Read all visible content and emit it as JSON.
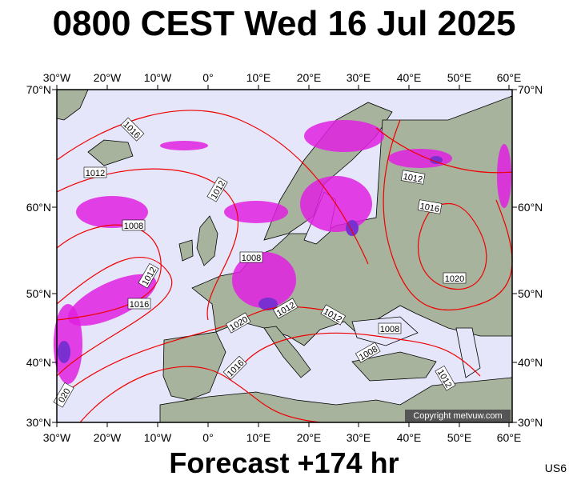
{
  "title": "0800 CEST Wed 16 Jul 2025",
  "map": {
    "lon_labels": [
      "30°W",
      "20°W",
      "10°W",
      "0°",
      "10°E",
      "20°E",
      "30°E",
      "40°E",
      "50°E",
      "60°E"
    ],
    "lat_labels": [
      "70°N",
      "60°N",
      "50°N",
      "40°N",
      "30°N"
    ],
    "isobar_labels": [
      "1016",
      "1012",
      "1012",
      "1008",
      "1008",
      "1012",
      "1016",
      "1012",
      "1020",
      "1016",
      "1012",
      "1008",
      "1008",
      "1012",
      "1016",
      "1020",
      "1012",
      "020"
    ],
    "copyright": "Copyright metvuw.com"
  },
  "footer": {
    "forecast": "Forecast +174 hr",
    "code": "US6"
  }
}
